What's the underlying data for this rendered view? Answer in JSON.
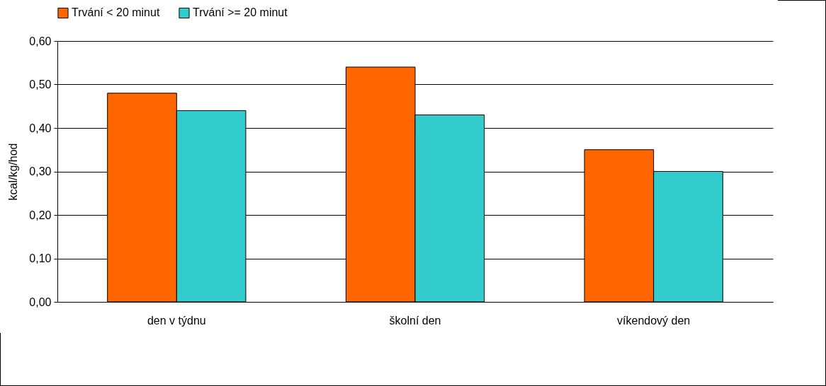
{
  "chart_data": {
    "type": "bar",
    "ylabel": "kcal/kg/hod",
    "categories": [
      "den v týdnu",
      "školní den",
      "víkendový den"
    ],
    "series": [
      {
        "name": "Trvání < 20 minut",
        "color": "#ff6600",
        "values": [
          0.48,
          0.54,
          0.35
        ]
      },
      {
        "name": "Trvání >= 20 minut",
        "color": "#33cccc",
        "values": [
          0.44,
          0.43,
          0.3
        ]
      }
    ],
    "ylim": [
      0,
      0.6
    ],
    "yticks": [
      {
        "value": 0,
        "label": "0,00"
      },
      {
        "value": 0.1,
        "label": "0,10"
      },
      {
        "value": 0.2,
        "label": "0,20"
      },
      {
        "value": 0.3,
        "label": "0,30"
      },
      {
        "value": 0.4,
        "label": "0,40"
      },
      {
        "value": 0.5,
        "label": "0,50"
      },
      {
        "value": 0.6,
        "label": "0,60"
      }
    ],
    "grid": "y",
    "legend": "top"
  }
}
